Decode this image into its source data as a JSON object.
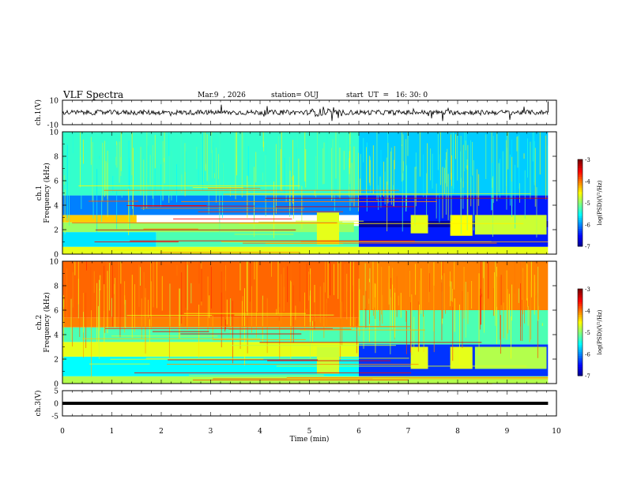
{
  "header": {
    "title": "VLF Spectra",
    "date": "Mar.9  , 2026",
    "station": "station= OUJ",
    "start": "start  UT  =   16: 30: 0"
  },
  "chart_data": [
    {
      "id": "ch1-waveform",
      "type": "line",
      "ylabel": "ch.1(V)",
      "ylim": [
        -10,
        10
      ],
      "y_ticks": [
        "10",
        "-10"
      ],
      "baseline": 0,
      "xlim": [
        0,
        10
      ],
      "data_end_min": 9.83,
      "color": "#000000"
    },
    {
      "id": "ch1-spectrogram",
      "type": "heatmap",
      "ylabel": "ch.1\nFrequency (kHz)",
      "ylim": [
        0,
        10
      ],
      "y_ticks": [
        "0",
        "2",
        "4",
        "6",
        "8",
        "10"
      ],
      "xlim": [
        0,
        10
      ],
      "data_end_min": 9.83,
      "colorbar": {
        "label": "log(PSD)(V²/Hz)",
        "range": [
          -7,
          -3
        ],
        "ticks": [
          "-3",
          "-4",
          "-5",
          "-6",
          "-7"
        ]
      },
      "bands": [
        {
          "f": [
            0,
            0.6
          ],
          "t": [
            0,
            9.83
          ],
          "level": -4.6
        },
        {
          "f": [
            0.6,
            1.8
          ],
          "t": [
            0,
            1.9
          ],
          "level": -5.6
        },
        {
          "f": [
            0.6,
            2.3
          ],
          "t": [
            1.9,
            6
          ],
          "level": -5.2
        },
        {
          "f": [
            1.8,
            2.6
          ],
          "t": [
            0,
            5.9
          ],
          "level": -4.9
        },
        {
          "f": [
            2.6,
            3.2
          ],
          "t": [
            0,
            1.5
          ],
          "level": -4.3
        },
        {
          "f": [
            3.2,
            4.8
          ],
          "t": [
            0,
            6
          ],
          "level": -6.0
        },
        {
          "f": [
            4.8,
            10
          ],
          "t": [
            0,
            6
          ],
          "level": -5.3
        },
        {
          "f": [
            0.6,
            4.8
          ],
          "t": [
            6,
            9.83
          ],
          "level": -6.4
        },
        {
          "f": [
            4.8,
            10
          ],
          "t": [
            6,
            9.83
          ],
          "level": -5.7
        },
        {
          "f": [
            2.2,
            2.7
          ],
          "t": [
            6,
            9.83
          ],
          "level": -6.9
        },
        {
          "f": [
            0.8,
            3.4
          ],
          "t": [
            5.15,
            5.6
          ],
          "level": -4.6
        },
        {
          "f": [
            1.7,
            3.2
          ],
          "t": [
            7.05,
            7.4
          ],
          "level": -4.6
        },
        {
          "f": [
            1.5,
            3.2
          ],
          "t": [
            7.85,
            8.3
          ],
          "level": -4.5
        },
        {
          "f": [
            1.6,
            3.2
          ],
          "t": [
            8.35,
            9.8
          ],
          "level": -4.7
        }
      ]
    },
    {
      "id": "ch2-spectrogram",
      "type": "heatmap",
      "ylabel": "ch.2\nFrequency (kHz)",
      "ylim": [
        0,
        10
      ],
      "y_ticks": [
        "0",
        "2",
        "4",
        "6",
        "8",
        "10"
      ],
      "xlim": [
        0,
        10
      ],
      "data_end_min": 9.83,
      "colorbar": {
        "label": "log(PSD)(V²/Hz)",
        "range": [
          -7,
          -3
        ],
        "ticks": [
          "-3",
          "-4",
          "-5",
          "-6",
          "-7"
        ]
      },
      "bands": [
        {
          "f": [
            0,
            0.6
          ],
          "t": [
            0,
            9.83
          ],
          "level": -4.8
        },
        {
          "f": [
            0.6,
            2.2
          ],
          "t": [
            0,
            6
          ],
          "level": -5.5
        },
        {
          "f": [
            2.2,
            3.4
          ],
          "t": [
            0,
            6
          ],
          "level": -4.6
        },
        {
          "f": [
            3.4,
            4.6
          ],
          "t": [
            0,
            6
          ],
          "level": -5.2
        },
        {
          "f": [
            4.6,
            5.4
          ],
          "t": [
            0,
            6
          ],
          "level": -4.0
        },
        {
          "f": [
            5.4,
            10
          ],
          "t": [
            0,
            6
          ],
          "level": -3.9
        },
        {
          "f": [
            0.6,
            3.2
          ],
          "t": [
            6,
            9.83
          ],
          "level": -6.3
        },
        {
          "f": [
            3.2,
            6.0
          ],
          "t": [
            6,
            9.83
          ],
          "level": -5.2
        },
        {
          "f": [
            6.0,
            10
          ],
          "t": [
            6,
            9.83
          ],
          "level": -4.0
        },
        {
          "f": [
            0.8,
            3.0
          ],
          "t": [
            5.15,
            5.6
          ],
          "level": -4.7
        },
        {
          "f": [
            1.2,
            3.0
          ],
          "t": [
            7.05,
            7.4
          ],
          "level": -4.6
        },
        {
          "f": [
            1.2,
            3.0
          ],
          "t": [
            7.85,
            8.3
          ],
          "level": -4.6
        },
        {
          "f": [
            1.2,
            3.0
          ],
          "t": [
            8.35,
            9.8
          ],
          "level": -4.8
        }
      ]
    },
    {
      "id": "ch3-waveform",
      "type": "line",
      "ylabel": "ch.3(V)",
      "ylim": [
        -5,
        5
      ],
      "y_ticks": [
        "5",
        "0",
        "-5"
      ],
      "baseline": 0,
      "xlim": [
        0,
        10
      ],
      "data_end_min": 9.83,
      "color": "#000000"
    }
  ],
  "x_axis": {
    "label": "Time (min)",
    "ticks": [
      "0",
      "1",
      "2",
      "3",
      "4",
      "5",
      "6",
      "7",
      "8",
      "9",
      "10"
    ]
  }
}
